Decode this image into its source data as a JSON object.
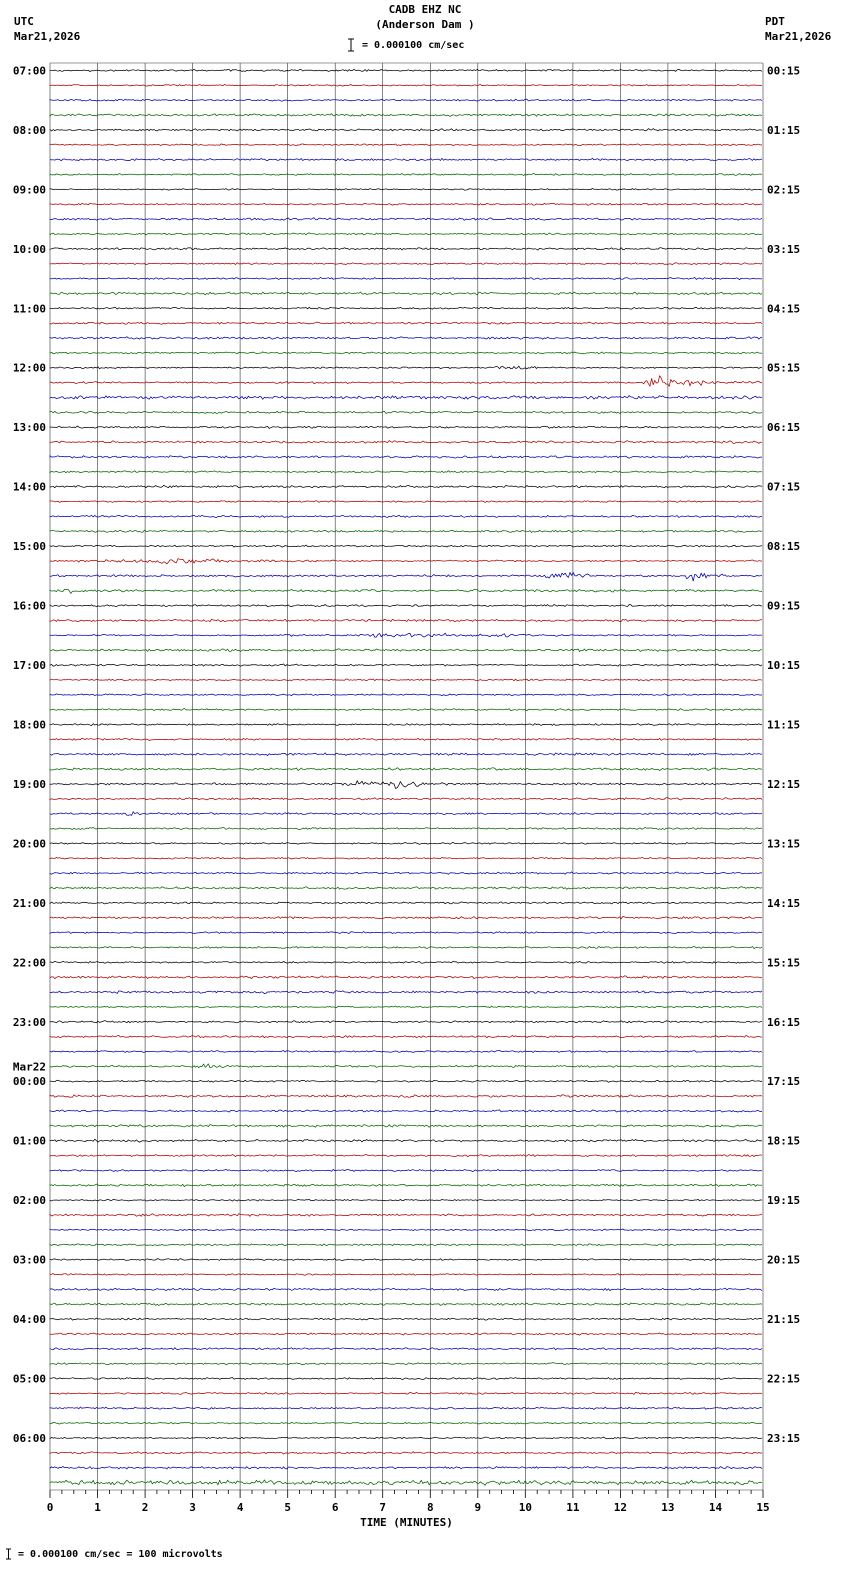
{
  "title": {
    "station": "CADB EHZ NC",
    "location": "(Anderson Dam )",
    "scale": "= 0.000100 cm/sec"
  },
  "corner": {
    "left_tz": "UTC",
    "left_date": "Mar21,2026",
    "right_tz": "PDT",
    "right_date": "Mar21,2026"
  },
  "footer_note": "= 0.000100 cm/sec =     100 microvolts",
  "chart_data": {
    "type": "line",
    "kind": "helicorder-seismogram",
    "xlabel": "TIME (MINUTES)",
    "x_min": 0,
    "x_max": 15,
    "x_ticks": [
      0,
      1,
      2,
      3,
      4,
      5,
      6,
      7,
      8,
      9,
      10,
      11,
      12,
      13,
      14,
      15
    ],
    "rows": 96,
    "minutes_per_row": 15,
    "row_start_utc": "Mar21 07:00",
    "row_end_utc": "Mar22 06:45",
    "trace_colors": [
      "#000000",
      "#aa0000",
      "#0000aa",
      "#006600"
    ],
    "grid_color": "#333333",
    "left_labels": [
      {
        "row": 0,
        "text": "07:00"
      },
      {
        "row": 4,
        "text": "08:00"
      },
      {
        "row": 8,
        "text": "09:00"
      },
      {
        "row": 12,
        "text": "10:00"
      },
      {
        "row": 16,
        "text": "11:00"
      },
      {
        "row": 20,
        "text": "12:00"
      },
      {
        "row": 24,
        "text": "13:00"
      },
      {
        "row": 28,
        "text": "14:00"
      },
      {
        "row": 32,
        "text": "15:00"
      },
      {
        "row": 36,
        "text": "16:00"
      },
      {
        "row": 40,
        "text": "17:00"
      },
      {
        "row": 44,
        "text": "18:00"
      },
      {
        "row": 48,
        "text": "19:00"
      },
      {
        "row": 52,
        "text": "20:00"
      },
      {
        "row": 56,
        "text": "21:00"
      },
      {
        "row": 60,
        "text": "22:00"
      },
      {
        "row": 64,
        "text": "23:00"
      },
      {
        "row": 67,
        "text": "Mar22"
      },
      {
        "row": 68,
        "text": "00:00"
      },
      {
        "row": 72,
        "text": "01:00"
      },
      {
        "row": 76,
        "text": "02:00"
      },
      {
        "row": 80,
        "text": "03:00"
      },
      {
        "row": 84,
        "text": "04:00"
      },
      {
        "row": 88,
        "text": "05:00"
      },
      {
        "row": 92,
        "text": "06:00"
      }
    ],
    "right_labels": [
      {
        "row": 0,
        "text": "00:15"
      },
      {
        "row": 4,
        "text": "01:15"
      },
      {
        "row": 8,
        "text": "02:15"
      },
      {
        "row": 12,
        "text": "03:15"
      },
      {
        "row": 16,
        "text": "04:15"
      },
      {
        "row": 20,
        "text": "05:15"
      },
      {
        "row": 24,
        "text": "06:15"
      },
      {
        "row": 28,
        "text": "07:15"
      },
      {
        "row": 32,
        "text": "08:15"
      },
      {
        "row": 36,
        "text": "09:15"
      },
      {
        "row": 40,
        "text": "10:15"
      },
      {
        "row": 44,
        "text": "11:15"
      },
      {
        "row": 48,
        "text": "12:15"
      },
      {
        "row": 52,
        "text": "13:15"
      },
      {
        "row": 56,
        "text": "14:15"
      },
      {
        "row": 60,
        "text": "15:15"
      },
      {
        "row": 64,
        "text": "16:15"
      },
      {
        "row": 68,
        "text": "17:15"
      },
      {
        "row": 72,
        "text": "18:15"
      },
      {
        "row": 76,
        "text": "19:15"
      },
      {
        "row": 80,
        "text": "20:15"
      },
      {
        "row": 84,
        "text": "21:15"
      },
      {
        "row": 88,
        "text": "22:15"
      },
      {
        "row": 92,
        "text": "23:15"
      }
    ],
    "events": [
      {
        "row": 20,
        "start": 9.0,
        "end": 10.9,
        "peak": 9.8,
        "amp": 1.4,
        "utc": "12:00 row minor burst"
      },
      {
        "row": 21,
        "start": 12.3,
        "end": 14.9,
        "peak": 12.8,
        "amp": 5.0,
        "utc": "12:15 row strong event"
      },
      {
        "row": 22,
        "start": 0,
        "end": 15,
        "amp": 0.45,
        "utc": "12:30 row elevated noise"
      },
      {
        "row": 33,
        "start": 0.1,
        "end": 6.6,
        "peak": 2.3,
        "amp": 1.8,
        "utc": "15:15 row noise band"
      },
      {
        "row": 34,
        "start": 10.3,
        "end": 11.8,
        "peak": 10.8,
        "amp": 3.8,
        "utc": "15:30 row event 1"
      },
      {
        "row": 34,
        "start": 13.2,
        "end": 14.4,
        "peak": 13.6,
        "amp": 3.5,
        "utc": "15:30 row event 2"
      },
      {
        "row": 35,
        "start": 0.0,
        "end": 1.1,
        "peak": 0.35,
        "amp": 1.3,
        "utc": "15:45 row small burst"
      },
      {
        "row": 38,
        "start": 6.4,
        "end": 10.2,
        "amp": 0.7,
        "utc": "16:30 row mild noise"
      },
      {
        "row": 48,
        "start": 5.5,
        "end": 8.5,
        "peak": 7.4,
        "amp": 3.2,
        "utc": "19:00 row event"
      },
      {
        "row": 50,
        "start": 1.5,
        "end": 2.1,
        "peak": 1.7,
        "amp": 1.5,
        "utc": "19:30 row blip"
      },
      {
        "row": 67,
        "start": 2.9,
        "end": 4.1,
        "peak": 3.3,
        "amp": 2.2,
        "utc": "23:45 row burst"
      },
      {
        "row": 67,
        "start": 9.6,
        "end": 10.2,
        "peak": 9.8,
        "amp": 1.0,
        "utc": "23:45 row blip"
      },
      {
        "row": 95,
        "start": 0,
        "end": 15,
        "amp": 0.8,
        "utc": "06:45 row elevated noise"
      }
    ]
  }
}
